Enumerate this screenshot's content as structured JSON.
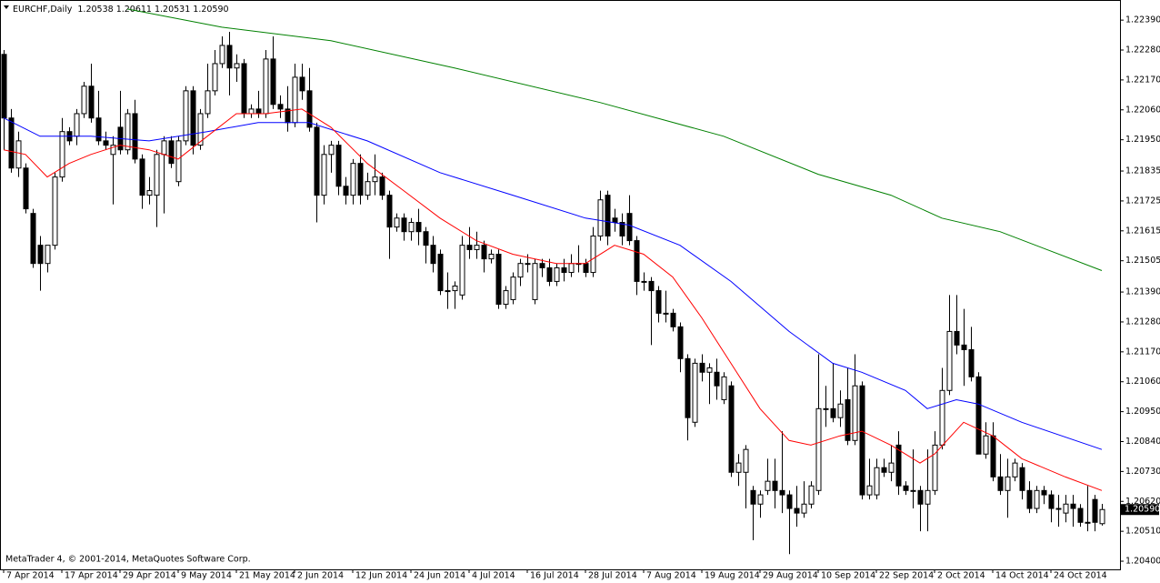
{
  "chart_data": {
    "type": "candlestick",
    "title": "EURCHF,Daily",
    "last_bar_labels": [
      "1.20538",
      "1.20611",
      "1.20531",
      "1.20590"
    ],
    "footer": "MetaTrader 4, © 2001-2014, MetaQuotes Software Corp.",
    "colors": {
      "bull": "#ffffff",
      "bear": "#000000",
      "wick": "#000000"
    },
    "grid": false,
    "ylim": [
      1.2037,
      1.22464
    ],
    "yticks": [
      {
        "value": 1.2239,
        "label": "1.22390"
      },
      {
        "value": 1.2228,
        "label": "1.22280"
      },
      {
        "value": 1.2217,
        "label": "1.22170"
      },
      {
        "value": 1.2206,
        "label": "1.22060"
      },
      {
        "value": 1.2195,
        "label": "1.21950"
      },
      1.21835,
      {
        "value": 1.21725,
        "label": "1.21725"
      },
      {
        "value": 1.21615,
        "label": "1.21615"
      },
      {
        "value": 1.21505,
        "label": "1.21505"
      },
      {
        "value": 1.2139,
        "label": "1.21390"
      },
      {
        "value": 1.2128,
        "label": "1.21280"
      },
      {
        "value": 1.2117,
        "label": "1.21170"
      },
      {
        "value": 1.2106,
        "label": "1.21060"
      },
      {
        "value": 1.2095,
        "label": "1.20950"
      },
      {
        "value": 1.2084,
        "label": "1.20840"
      },
      {
        "value": 1.2073,
        "label": "1.20730"
      },
      {
        "value": 1.2062,
        "label": "1.20620"
      },
      {
        "value": 1.2051,
        "label": "1.20510"
      },
      {
        "value": 1.204,
        "label": "1.20400"
      }
    ],
    "xticks": [
      {
        "value": 0,
        "label": "7 Apr 2014"
      },
      {
        "value": 8,
        "label": "17 Apr 2014"
      },
      {
        "value": 16,
        "label": "29 Apr 2014"
      },
      {
        "value": 24,
        "label": "9 May 2014"
      },
      {
        "value": 32,
        "label": "21 May 2014"
      },
      {
        "value": 40,
        "label": "2 Jun 2014"
      },
      {
        "value": 48,
        "label": "12 Jun 2014"
      },
      {
        "value": 56,
        "label": "24 Jun 2014"
      },
      {
        "value": 64,
        "label": "4 Jul 2014"
      },
      {
        "value": 72,
        "label": "16 Jul 2014"
      },
      {
        "value": 80,
        "label": "28 Jul 2014"
      },
      {
        "value": 88,
        "label": "7 Aug 2014"
      },
      {
        "value": 96,
        "label": "19 Aug 2014"
      },
      {
        "value": 104,
        "label": "29 Aug 2014"
      },
      {
        "value": 112,
        "label": "10 Sep 2014"
      },
      {
        "value": 120,
        "label": "22 Sep 2014"
      },
      {
        "value": 128,
        "label": "2 Oct 2014"
      },
      {
        "value": 136,
        "label": "14 Oct 2014"
      },
      {
        "value": 144,
        "label": "24 Oct 2014"
      }
    ],
    "ohlc": [
      [
        1.22264,
        1.2228,
        1.21913,
        1.2203
      ],
      [
        1.2203,
        1.22063,
        1.21829,
        1.21846
      ],
      [
        1.21846,
        1.2198,
        1.21813,
        1.21946
      ],
      [
        1.21846,
        1.21863,
        1.21679,
        1.21696
      ],
      [
        1.21679,
        1.21696,
        1.21479,
        1.21495
      ],
      [
        1.21562,
        1.21596,
        1.21395,
        1.21495
      ],
      [
        1.21495,
        1.21562,
        1.21462,
        1.21562
      ],
      [
        1.21562,
        1.21829,
        1.21546,
        1.21813
      ],
      [
        1.21813,
        1.2203,
        1.21796,
        1.2198
      ],
      [
        1.2198,
        1.21996,
        1.2193,
        1.21946
      ],
      [
        1.21963,
        1.22063,
        1.2193,
        1.22046
      ],
      [
        1.22046,
        1.22163,
        1.2203,
        1.22147
      ],
      [
        1.22147,
        1.2223,
        1.22013,
        1.2203
      ],
      [
        1.2203,
        1.2213,
        1.2193,
        1.21946
      ],
      [
        1.21946,
        1.2198,
        1.21913,
        1.2193
      ],
      [
        1.21896,
        1.21963,
        1.21712,
        1.2193
      ],
      [
        1.21996,
        1.2213,
        1.21896,
        1.21913
      ],
      [
        1.21913,
        1.22063,
        1.21896,
        1.22046
      ],
      [
        1.22046,
        1.22097,
        1.21863,
        1.21879
      ],
      [
        1.21879,
        1.21896,
        1.21696,
        1.21746
      ],
      [
        1.21746,
        1.21813,
        1.21712,
        1.21763
      ],
      [
        1.21746,
        1.21913,
        1.21629,
        1.21896
      ],
      [
        1.21896,
        1.21963,
        1.21679,
        1.21946
      ],
      [
        1.21946,
        1.21963,
        1.21846,
        1.21863
      ],
      [
        1.21796,
        1.21963,
        1.21779,
        1.21946
      ],
      [
        1.21946,
        1.22147,
        1.2193,
        1.2213
      ],
      [
        1.2213,
        1.22147,
        1.21896,
        1.2193
      ],
      [
        1.2193,
        1.22063,
        1.21913,
        1.22046
      ],
      [
        1.22046,
        1.2223,
        1.2203,
        1.2213
      ],
      [
        1.2213,
        1.2228,
        1.22113,
        1.2223
      ],
      [
        1.2223,
        1.2233,
        1.22214,
        1.22297
      ],
      [
        1.22297,
        1.22347,
        1.22113,
        1.22214
      ],
      [
        1.22214,
        1.22264,
        1.22163,
        1.2223
      ],
      [
        1.2223,
        1.22247,
        1.2203,
        1.22046
      ],
      [
        1.22046,
        1.2208,
        1.2203,
        1.22063
      ],
      [
        1.22063,
        1.2213,
        1.2203,
        1.22046
      ],
      [
        1.22046,
        1.2228,
        1.2203,
        1.22247
      ],
      [
        1.22247,
        1.2233,
        1.22063,
        1.2208
      ],
      [
        1.2208,
        1.22113,
        1.2203,
        1.22063
      ],
      [
        1.22063,
        1.22147,
        1.2198,
        1.22013
      ],
      [
        1.22013,
        1.2223,
        1.21996,
        1.2218
      ],
      [
        1.2218,
        1.2223,
        1.22097,
        1.2213
      ],
      [
        1.2213,
        1.22214,
        1.2198,
        1.21996
      ],
      [
        1.21996,
        1.22013,
        1.21646,
        1.21746
      ],
      [
        1.21746,
        1.2193,
        1.21712,
        1.21896
      ],
      [
        1.21896,
        1.21946,
        1.21829,
        1.2193
      ],
      [
        1.2193,
        1.21946,
        1.21746,
        1.21779
      ],
      [
        1.21779,
        1.21813,
        1.21712,
        1.21746
      ],
      [
        1.21746,
        1.21879,
        1.21712,
        1.21863
      ],
      [
        1.21863,
        1.21896,
        1.21712,
        1.21746
      ],
      [
        1.21746,
        1.21829,
        1.21729,
        1.21796
      ],
      [
        1.21796,
        1.21896,
        1.21746,
        1.21813
      ],
      [
        1.21813,
        1.21829,
        1.21729,
        1.21746
      ],
      [
        1.21746,
        1.21763,
        1.21512,
        1.21629
      ],
      [
        1.21629,
        1.21679,
        1.21612,
        1.21662
      ],
      [
        1.21662,
        1.21679,
        1.21579,
        1.21612
      ],
      [
        1.21612,
        1.21662,
        1.21579,
        1.21646
      ],
      [
        1.21646,
        1.21696,
        1.21562,
        1.21612
      ],
      [
        1.21612,
        1.21629,
        1.21495,
        1.21562
      ],
      [
        1.21562,
        1.21596,
        1.21462,
        1.21495
      ],
      [
        1.21529,
        1.21546,
        1.21379,
        1.21395
      ],
      [
        1.21395,
        1.21462,
        1.21328,
        1.21395
      ],
      [
        1.21395,
        1.21429,
        1.21328,
        1.21412
      ],
      [
        1.21379,
        1.21596,
        1.21362,
        1.21562
      ],
      [
        1.21562,
        1.21629,
        1.21512,
        1.21546
      ],
      [
        1.21546,
        1.21612,
        1.21512,
        1.21562
      ],
      [
        1.21562,
        1.21579,
        1.21462,
        1.21512
      ],
      [
        1.21512,
        1.21546,
        1.21495,
        1.21529
      ],
      [
        1.21529,
        1.21546,
        1.21328,
        1.21345
      ],
      [
        1.21345,
        1.21412,
        1.21328,
        1.21395
      ],
      [
        1.21362,
        1.21462,
        1.21345,
        1.21445
      ],
      [
        1.21445,
        1.21512,
        1.21412,
        1.21495
      ],
      [
        1.21495,
        1.21529,
        1.21462,
        1.21495
      ],
      [
        1.21362,
        1.21512,
        1.21345,
        1.21495
      ],
      [
        1.21495,
        1.21512,
        1.21445,
        1.21479
      ],
      [
        1.21479,
        1.21512,
        1.21412,
        1.21429
      ],
      [
        1.21429,
        1.21495,
        1.21412,
        1.21479
      ],
      [
        1.21479,
        1.21512,
        1.21429,
        1.21462
      ],
      [
        1.21462,
        1.21529,
        1.21445,
        1.21495
      ],
      [
        1.21495,
        1.21562,
        1.21462,
        1.21495
      ],
      [
        1.21495,
        1.21512,
        1.21445,
        1.21462
      ],
      [
        1.21462,
        1.21629,
        1.21445,
        1.21596
      ],
      [
        1.21596,
        1.21763,
        1.21579,
        1.21729
      ],
      [
        1.21746,
        1.21763,
        1.21562,
        1.21596
      ],
      [
        1.21662,
        1.21696,
        1.21612,
        1.21646
      ],
      [
        1.21646,
        1.21679,
        1.21562,
        1.21596
      ],
      [
        1.21679,
        1.21746,
        1.21562,
        1.21579
      ],
      [
        1.21579,
        1.21596,
        1.21379,
        1.21429
      ],
      [
        1.21429,
        1.21462,
        1.21395,
        1.21429
      ],
      [
        1.21429,
        1.21445,
        1.21195,
        1.21395
      ],
      [
        1.21395,
        1.21412,
        1.21278,
        1.21312
      ],
      [
        1.21312,
        1.21395,
        1.21278,
        1.21312
      ],
      [
        1.21312,
        1.21328,
        1.21245,
        1.21262
      ],
      [
        1.21262,
        1.21278,
        1.21095,
        1.21145
      ],
      [
        1.21145,
        1.21161,
        1.20844,
        1.20928
      ],
      [
        1.20911,
        1.21145,
        1.20894,
        1.21128
      ],
      [
        1.21128,
        1.21161,
        1.21061,
        1.21095
      ],
      [
        1.21095,
        1.21128,
        1.20978,
        1.21111
      ],
      [
        1.21095,
        1.21145,
        1.20994,
        1.21045
      ],
      [
        1.20994,
        1.21095,
        1.20978,
        1.21078
      ],
      [
        1.21045,
        1.21061,
        1.2071,
        1.20727
      ],
      [
        1.20727,
        1.20794,
        1.20677,
        1.20761
      ],
      [
        1.20727,
        1.20827,
        1.20594,
        1.20811
      ],
      [
        1.2066,
        1.20677,
        1.20477,
        1.2061
      ],
      [
        1.2061,
        1.2066,
        1.2056,
        1.20644
      ],
      [
        1.2066,
        1.20777,
        1.20644,
        1.20694
      ],
      [
        1.20694,
        1.20777,
        1.20594,
        1.2066
      ],
      [
        1.2066,
        1.20878,
        1.20577,
        1.20644
      ],
      [
        1.20644,
        1.2066,
        1.20426,
        1.20594
      ],
      [
        1.20594,
        1.20677,
        1.20527,
        1.20577
      ],
      [
        1.20577,
        1.20694,
        1.2056,
        1.2061
      ],
      [
        1.2061,
        1.20694,
        1.20594,
        1.20677
      ],
      [
        1.2066,
        1.21161,
        1.20644,
        1.20961
      ],
      [
        1.20961,
        1.21045,
        1.20894,
        1.20961
      ],
      [
        1.20961,
        1.21128,
        1.20911,
        1.20928
      ],
      [
        1.20928,
        1.21028,
        1.20894,
        1.20978
      ],
      [
        1.20994,
        1.21111,
        1.20827,
        1.20844
      ],
      [
        1.20844,
        1.21161,
        1.20827,
        1.21045
      ],
      [
        1.21045,
        1.21061,
        1.20627,
        1.20644
      ],
      [
        1.20644,
        1.20777,
        1.20627,
        1.20677
      ],
      [
        1.20644,
        1.20777,
        1.20627,
        1.20744
      ],
      [
        1.20744,
        1.20777,
        1.2071,
        1.20727
      ],
      [
        1.20727,
        1.20827,
        1.20694,
        1.20761
      ],
      [
        1.20827,
        1.20878,
        1.20644,
        1.20677
      ],
      [
        1.20677,
        1.20694,
        1.20644,
        1.2066
      ],
      [
        1.2066,
        1.20811,
        1.20594,
        1.2066
      ],
      [
        1.2066,
        1.20677,
        1.2051,
        1.2061
      ],
      [
        1.2061,
        1.20811,
        1.2051,
        1.2066
      ],
      [
        1.2066,
        1.20878,
        1.20644,
        1.20827
      ],
      [
        1.20827,
        1.21111,
        1.20811,
        1.21028
      ],
      [
        1.21028,
        1.21379,
        1.21011,
        1.21245
      ],
      [
        1.21245,
        1.21379,
        1.21161,
        1.21195
      ],
      [
        1.21195,
        1.21328,
        1.21045,
        1.21178
      ],
      [
        1.21178,
        1.21262,
        1.21061,
        1.21078
      ],
      [
        1.21078,
        1.21095,
        1.20794,
        1.20794
      ],
      [
        1.20794,
        1.20911,
        1.20777,
        1.20861
      ],
      [
        1.20861,
        1.20911,
        1.20694,
        1.2071
      ],
      [
        1.2071,
        1.20794,
        1.20644,
        1.2066
      ],
      [
        1.2066,
        1.20777,
        1.2056,
        1.2071
      ],
      [
        1.2071,
        1.20777,
        1.20694,
        1.20761
      ],
      [
        1.20744,
        1.20761,
        1.20627,
        1.2066
      ],
      [
        1.2066,
        1.20694,
        1.20577,
        1.20594
      ],
      [
        1.20594,
        1.20677,
        1.20577,
        1.2066
      ],
      [
        1.2066,
        1.20677,
        1.2061,
        1.20644
      ],
      [
        1.20644,
        1.2066,
        1.20543,
        1.20594
      ],
      [
        1.20594,
        1.20644,
        1.20527,
        1.20594
      ],
      [
        1.20577,
        1.20644,
        1.20543,
        1.2061
      ],
      [
        1.2061,
        1.20644,
        1.20527,
        1.20594
      ],
      [
        1.20594,
        1.2061,
        1.20527,
        1.20543
      ],
      [
        1.20543,
        1.20677,
        1.2051,
        1.20543
      ],
      [
        1.20627,
        1.20644,
        1.2051,
        1.20543
      ],
      [
        1.20538,
        1.20611,
        1.20531,
        1.2059
      ]
    ],
    "series": [
      {
        "color": "#008000",
        "x": [
          17,
          30,
          45,
          62,
          82,
          99,
          112,
          122,
          129,
          137,
          151
        ],
        "values": [
          1.22431,
          1.22364,
          1.22314,
          1.22214,
          1.22087,
          1.21963,
          1.21823,
          1.21746,
          1.21662,
          1.21612,
          1.21469
        ]
      },
      {
        "color": "#0000ff",
        "x": [
          0,
          5,
          12,
          20,
          28,
          35,
          42,
          50,
          60,
          70,
          80,
          86,
          93,
          100,
          108,
          114,
          118,
          124,
          127,
          131,
          134,
          140,
          151
        ],
        "values": [
          1.2203,
          1.21963,
          1.21963,
          1.21946,
          1.2198,
          1.22013,
          1.22013,
          1.21946,
          1.21829,
          1.21746,
          1.21662,
          1.21636,
          1.21562,
          1.21429,
          1.21245,
          1.21128,
          1.21095,
          1.21028,
          1.20961,
          1.20994,
          1.20978,
          1.20911,
          1.20811
        ]
      },
      {
        "color": "#ff0000",
        "x": [
          0,
          3,
          6,
          9,
          12,
          16,
          20,
          24,
          28,
          32,
          36,
          41,
          45,
          50,
          55,
          60,
          65,
          70,
          76,
          80,
          84,
          88,
          92,
          96,
          100,
          104,
          108,
          111,
          115,
          118,
          122,
          126,
          128,
          132,
          136,
          140,
          146,
          151
        ],
        "values": [
          1.21913,
          1.21896,
          1.21813,
          1.21863,
          1.21896,
          1.2193,
          1.21913,
          1.21879,
          1.21963,
          1.22046,
          1.22046,
          1.22063,
          1.21996,
          1.21863,
          1.21763,
          1.21662,
          1.21579,
          1.21529,
          1.21495,
          1.21495,
          1.21562,
          1.21529,
          1.21445,
          1.21295,
          1.21128,
          1.20961,
          1.20844,
          1.20827,
          1.20861,
          1.20878,
          1.20827,
          1.20761,
          1.20794,
          1.20911,
          1.20861,
          1.20777,
          1.2071,
          1.2066
        ]
      }
    ]
  }
}
